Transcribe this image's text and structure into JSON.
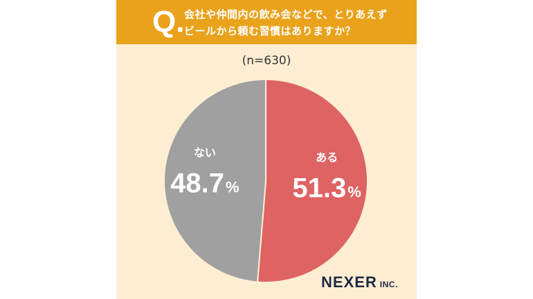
{
  "header": {
    "q_mark": "Q.",
    "question_line1": "会社や仲間内の飲み会などで、とりあえず",
    "question_line2": "ビールから頼む習慣はありますか？"
  },
  "sample_size": "(n=630)",
  "logo": {
    "main": "NEXER",
    "sub": "INC."
  },
  "colors": {
    "header_bg": "#e9a21a",
    "card_bg": "#fdeed2",
    "yes_slice": "#de6363",
    "no_slice": "#a0a0a0"
  },
  "chart_data": {
    "type": "pie",
    "slices": [
      {
        "label": "ある",
        "value": 51.3,
        "value_text": "51.3",
        "unit": "%",
        "color": "#de6363"
      },
      {
        "label": "ない",
        "value": 48.7,
        "value_text": "48.7",
        "unit": "%",
        "color": "#a0a0a0"
      }
    ],
    "start": "top",
    "direction": "clockwise"
  }
}
